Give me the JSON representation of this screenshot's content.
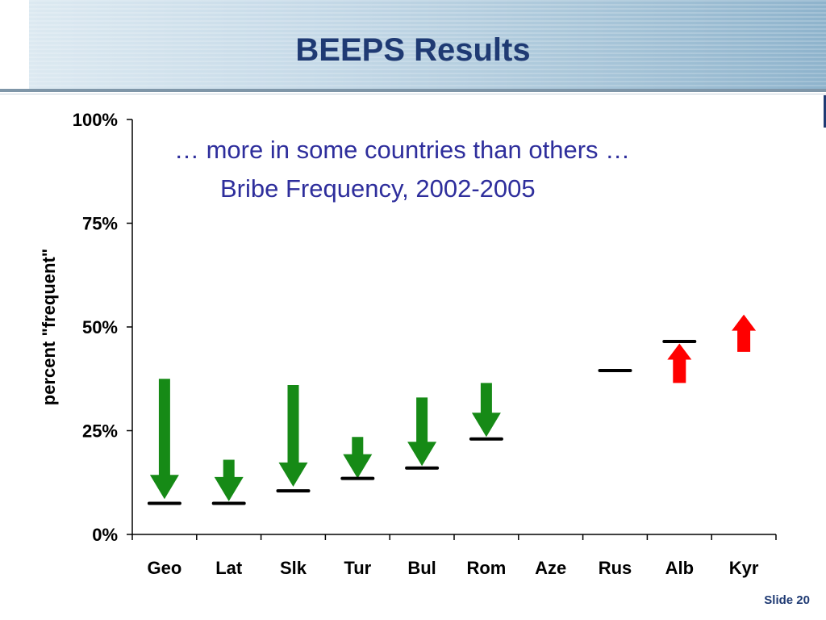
{
  "slide": {
    "title": "BEEPS Results",
    "number_label": "Slide 20"
  },
  "colors": {
    "title": "#1f3a73",
    "subtitle": "#2e2e9c",
    "decrease_arrow": "#168a16",
    "increase_arrow": "#ff0000",
    "marker": "#000000"
  },
  "chart_data": {
    "type": "scatter",
    "annotation_lines": [
      "… more in some countries than others …",
      "Bribe Frequency, 2002-2005"
    ],
    "ylabel": "percent \"frequent\"",
    "xlabel": "",
    "ylim": [
      0,
      100
    ],
    "yticks": [
      0,
      25,
      50,
      75,
      100
    ],
    "ytick_labels": [
      "0%",
      "25%",
      "50%",
      "75%",
      "100%"
    ],
    "categories": [
      "Geo",
      "Lat",
      "Slk",
      "Tur",
      "Bul",
      "Rom",
      "Aze",
      "Rus",
      "Alb",
      "Kyr"
    ],
    "series": [
      {
        "marker": "dash",
        "values": [
          7.5,
          7.5,
          10.5,
          13.5,
          16,
          23,
          null,
          39.5,
          46.5,
          null
        ]
      }
    ],
    "arrows": [
      {
        "category": "Geo",
        "direction": "down",
        "from": 37.5,
        "to": 8.5
      },
      {
        "category": "Lat",
        "direction": "down",
        "from": 18,
        "to": 8
      },
      {
        "category": "Slk",
        "direction": "down",
        "from": 36,
        "to": 11.5
      },
      {
        "category": "Tur",
        "direction": "down",
        "from": 23.5,
        "to": 13.5
      },
      {
        "category": "Bul",
        "direction": "down",
        "from": 33,
        "to": 16.5
      },
      {
        "category": "Rom",
        "direction": "down",
        "from": 36.5,
        "to": 23.5
      },
      {
        "category": "Alb",
        "direction": "up",
        "from": 36.5,
        "to": 46
      },
      {
        "category": "Kyr",
        "direction": "up",
        "from": 44,
        "to": 53
      }
    ],
    "grid": false,
    "legend": "none"
  }
}
